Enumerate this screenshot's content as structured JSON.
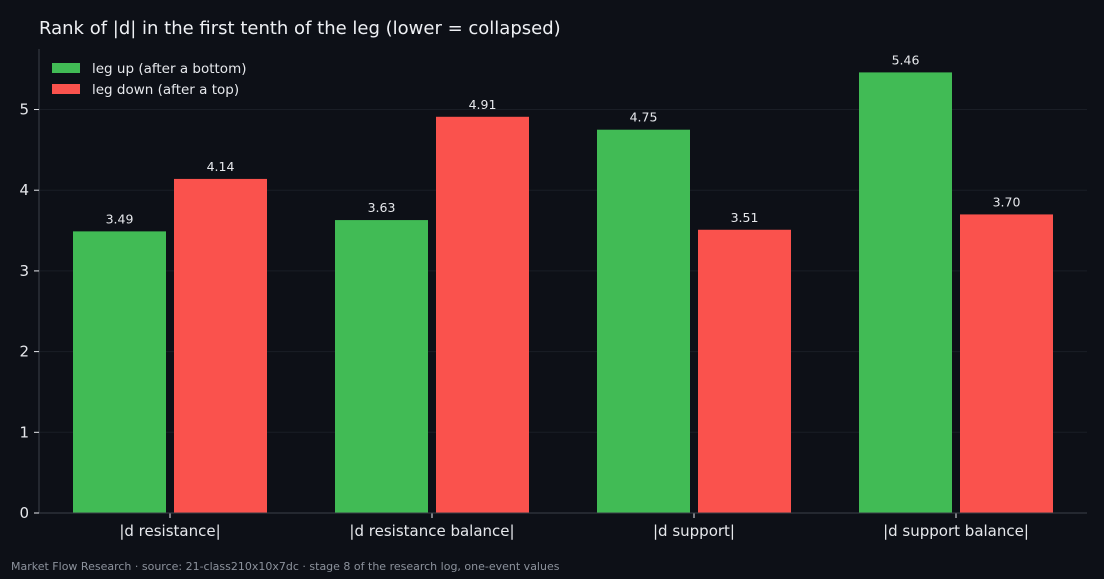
{
  "chart_data": {
    "type": "bar",
    "title": "Rank of |d| in the first tenth of the leg (lower = collapsed)",
    "categories": [
      "|d resistance|",
      "|d resistance balance|",
      "|d support|",
      "|d support balance|"
    ],
    "series": [
      {
        "name": "leg up (after a bottom)",
        "color": "#41bb55",
        "values": [
          3.49,
          3.63,
          4.75,
          5.46
        ],
        "labels": [
          "3.49",
          "3.63",
          "4.75",
          "5.46"
        ]
      },
      {
        "name": "leg down (after a top)",
        "color": "#fa524d",
        "values": [
          4.14,
          4.91,
          3.51,
          3.7
        ],
        "labels": [
          "4.14",
          "4.91",
          "3.51",
          "3.70"
        ]
      }
    ],
    "ylim": [
      0,
      5.75
    ],
    "yticks": [
      0,
      1,
      2,
      3,
      4,
      5
    ],
    "ytick_labels": [
      "0",
      "1",
      "2",
      "3",
      "4",
      "5"
    ],
    "xlabel": "",
    "ylabel": "",
    "grid": true,
    "legend_position": "top-left"
  },
  "footer": "Market Flow Research · source: 21-class210x10x7dc · stage 8 of the research log, one-event values",
  "colors": {
    "background": "#0d1017",
    "text": "#e6e8ec",
    "grid": "#1a1e26",
    "axis": "#3a3f48"
  }
}
